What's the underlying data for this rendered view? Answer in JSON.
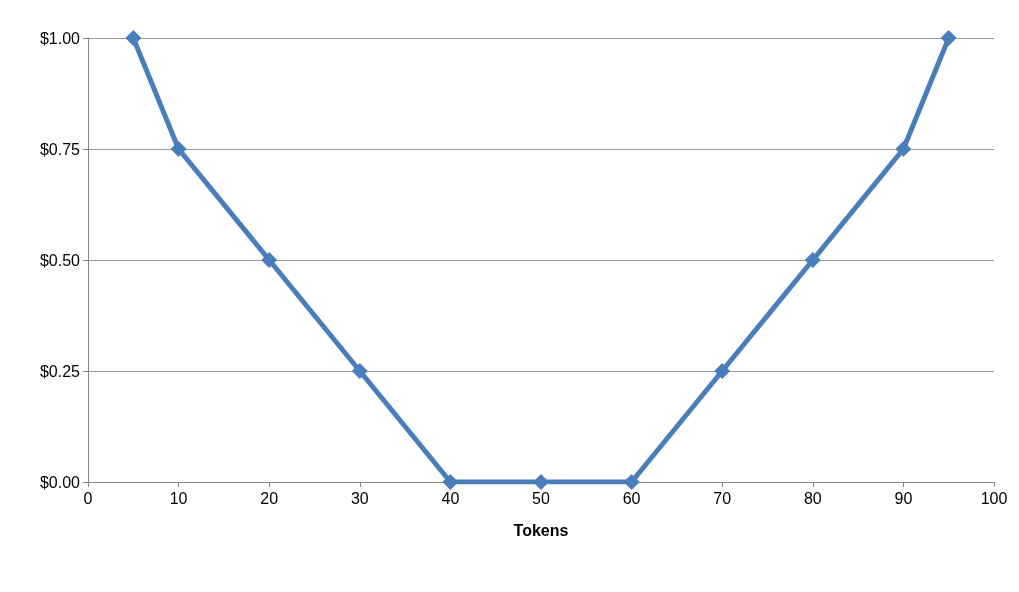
{
  "chart_data": {
    "type": "line",
    "xlabel": "Tokens",
    "x": [
      5,
      10,
      20,
      30,
      40,
      50,
      60,
      70,
      80,
      90,
      95
    ],
    "series": [
      {
        "color": "#4a7ebb",
        "values": [
          1,
          0.75,
          0.5,
          0.25,
          0,
          0,
          0,
          0.25,
          0.5,
          0.75,
          1
        ]
      }
    ],
    "xlim": [
      0,
      100
    ],
    "xticks": [
      0,
      10,
      20,
      30,
      40,
      50,
      60,
      70,
      80,
      90,
      100
    ],
    "ylim": [
      0,
      1
    ],
    "yticks": [
      {
        "value": 0,
        "label": "$0.00"
      },
      {
        "value": 0.25,
        "label": "$0.25"
      },
      {
        "value": 0.5,
        "label": "$0.50"
      },
      {
        "value": 0.75,
        "label": "$0.75"
      },
      {
        "value": 1,
        "label": "$1.00"
      }
    ],
    "grid": "y",
    "marker": "diamond",
    "line_style": "solid"
  }
}
